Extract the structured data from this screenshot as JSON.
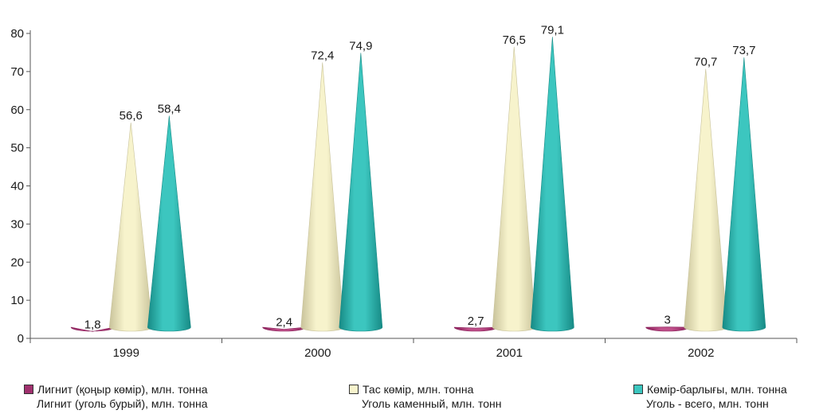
{
  "chart_data": {
    "type": "bar",
    "categories": [
      "1999",
      "2000",
      "2001",
      "2002"
    ],
    "ylim": [
      0,
      80
    ],
    "yticks": [
      0,
      10,
      20,
      30,
      40,
      50,
      60,
      70,
      80
    ],
    "grid": false,
    "legend_position": "bottom",
    "series": [
      {
        "name": "Лигнит (қоңыр көмір), млн. тонна",
        "name_ru": "Лигнит (уголь бурый), млн. тонна",
        "values": [
          1.8,
          2.4,
          2.7,
          3
        ],
        "labels": [
          "1,8",
          "2,4",
          "2,7",
          "3"
        ],
        "color": "#c0508a",
        "color_dark": "#8a1f5a"
      },
      {
        "name": "Тас көмір, млн. тонна",
        "name_ru": "Уголь каменный, млн. тонн",
        "values": [
          56.6,
          72.4,
          76.5,
          70.7
        ],
        "labels": [
          "56,6",
          "72,4",
          "76,5",
          "70,7"
        ],
        "color": "#f7f3cc",
        "color_dark": "#c8c29a"
      },
      {
        "name": "Көмір-барлығы, млн. тонна",
        "name_ru": "Уголь - всего, млн. тонн",
        "values": [
          58.4,
          74.9,
          79.1,
          73.7
        ],
        "labels": [
          "58,4",
          "74,9",
          "79,1",
          "73,7"
        ],
        "color": "#3cc6bf",
        "color_dark": "#178a85"
      }
    ]
  }
}
